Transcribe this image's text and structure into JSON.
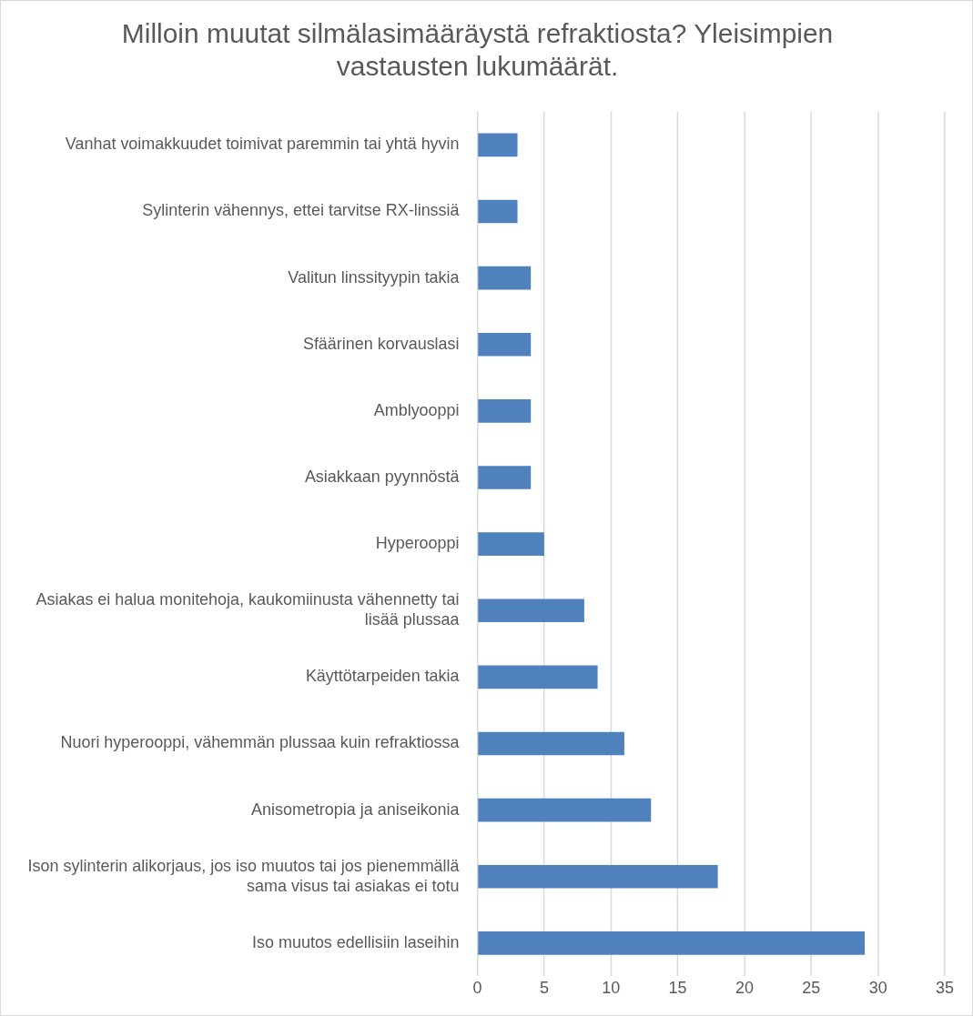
{
  "chart_data": {
    "type": "bar",
    "orientation": "horizontal",
    "title": "Milloin muutat silmälasimääräystä refraktiosta? Yleisimpien vastausten lukumäärät.",
    "categories": [
      "Vanhat voimakkuudet toimivat paremmin tai yhtä hyvin",
      "Sylinterin vähennys, ettei tarvitse RX-linssiä",
      "Valitun linssityypin takia",
      "Sfäärinen korvauslasi",
      "Amblyooppi",
      "Asiakkaan pyynnöstä",
      "Hyperooppi",
      "Asiakas ei halua monitehoja, kaukomiinusta vähennetty tai lisää plussaa",
      "Käyttötarpeiden takia",
      "Nuori hyperooppi, vähemmän plussaa kuin refraktiossa",
      "Anisometropia ja aniseikonia",
      "Ison sylinterin alikorjaus, jos iso muutos tai jos pienemmällä sama visus tai asiakas ei totu",
      "Iso muutos edellisiin laseihin"
    ],
    "values": [
      3,
      3,
      4,
      4,
      4,
      4,
      5,
      8,
      9,
      11,
      13,
      18,
      29
    ],
    "color": "#4f81bd",
    "xlim": [
      0,
      35
    ],
    "xticks": [
      0,
      5,
      10,
      15,
      20,
      25,
      30,
      35
    ],
    "grid": "x",
    "legend": false
  }
}
